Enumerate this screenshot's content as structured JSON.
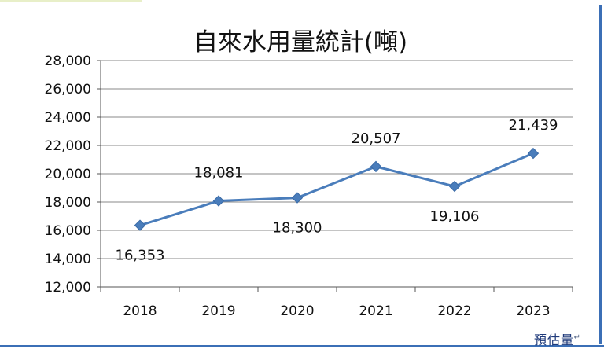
{
  "chart_data": {
    "type": "line",
    "title": "自來水用量統計(噸)",
    "categories": [
      "2018",
      "2019",
      "2020",
      "2021",
      "2022",
      "2023"
    ],
    "values": [
      16353,
      18081,
      18300,
      20507,
      19106,
      21439
    ],
    "data_labels": [
      "16,353",
      "18,081",
      "18,300",
      "20,507",
      "19,106",
      "21,439"
    ],
    "ylim": [
      12000,
      28000
    ],
    "yticks": [
      "12,000",
      "14,000",
      "16,000",
      "18,000",
      "20,000",
      "22,000",
      "24,000",
      "26,000",
      "28,000"
    ],
    "grid": true,
    "legend": "none",
    "colors": {
      "line": "#4a7dbb",
      "marker": "#4a7dbb",
      "grid": "#8a8a8a"
    }
  },
  "footnote": "預估量",
  "footnote_mark": "↵"
}
